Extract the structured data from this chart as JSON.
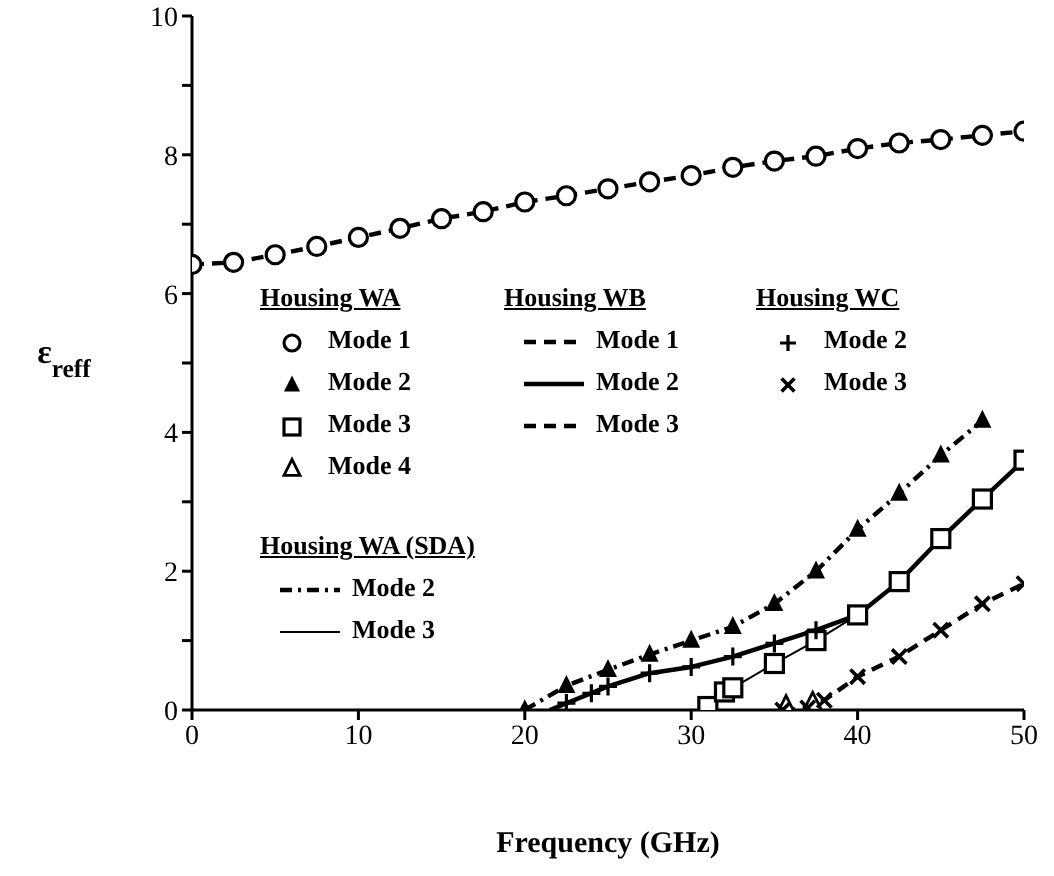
{
  "chart_data": {
    "type": "scatter",
    "xlabel": "Frequency (GHz)",
    "ylabel": "ε$_{reff}$",
    "xlim": [
      0,
      50
    ],
    "ylim": [
      0,
      10
    ],
    "xticks": [
      0,
      10,
      20,
      30,
      40,
      50
    ],
    "yticks": [
      0,
      {
        "value": 1,
        "label": null
      },
      2,
      {
        "value": 3,
        "label": null
      },
      4,
      {
        "value": 5,
        "label": null
      },
      6,
      {
        "value": 7,
        "label": null
      },
      8,
      {
        "value": 9,
        "label": null
      },
      10
    ],
    "grid": false,
    "legend": "left",
    "annotations": [
      "Housing WA",
      "Housing WB",
      "Housing WC",
      "Housing WA (SDA)"
    ],
    "series": [
      {
        "name": "Mode 1",
        "marker": "circle",
        "color": "#000000",
        "x": [
          0,
          2.5,
          5,
          7.5,
          10,
          12.5,
          15,
          17.5,
          20,
          22.5,
          25,
          27.5,
          30,
          32.5,
          35,
          37.5,
          40,
          42.5,
          45,
          47.5,
          50
        ],
        "values": [
          6.42,
          6.45,
          6.56,
          6.68,
          6.81,
          6.94,
          7.08,
          7.18,
          7.32,
          7.41,
          7.51,
          7.61,
          7.7,
          7.82,
          7.91,
          7.98,
          8.09,
          8.17,
          8.22,
          8.28,
          8.34
        ]
      },
      {
        "name": "Mode 2",
        "marker": "triangle",
        "color": "#000000",
        "x": [
          20,
          22.5,
          25,
          27.5,
          30,
          32.5,
          35,
          37.5,
          40,
          42.5,
          45,
          47.5
        ],
        "values": [
          0,
          0.35,
          0.58,
          0.8,
          1.0,
          1.2,
          1.53,
          2.0,
          2.6,
          3.12,
          3.67,
          4.17
        ]
      },
      {
        "name": "Mode 3",
        "marker": "square",
        "color": "#000000",
        "x": [
          31,
          32,
          32.5,
          35,
          37.5,
          40,
          42.5,
          45,
          47.5,
          50
        ],
        "values": [
          0.05,
          0.26,
          0.32,
          0.67,
          1.0,
          1.37,
          1.85,
          2.47,
          3.04,
          3.6
        ]
      },
      {
        "name": "Mode 4",
        "marker": "triangle-open",
        "color": "#000000",
        "x": [
          35.7,
          37.3
        ],
        "values": [
          0.05,
          0.1
        ]
      },
      {
        "name": "Mode 1",
        "type": "line",
        "line_style": "dashed",
        "color": "#000000",
        "x": [
          0,
          2.5,
          5,
          7.5,
          10,
          12.5,
          15,
          17.5,
          20,
          22.5,
          25,
          27.5,
          30,
          32.5,
          35,
          37.5,
          40,
          42.5,
          45,
          47.5,
          50
        ],
        "values": [
          6.42,
          6.45,
          6.56,
          6.68,
          6.81,
          6.94,
          7.08,
          7.18,
          7.32,
          7.41,
          7.51,
          7.61,
          7.7,
          7.82,
          7.91,
          7.98,
          8.09,
          8.17,
          8.22,
          8.28,
          8.34
        ]
      },
      {
        "name": "Mode 2",
        "type": "line",
        "line_style": "solid",
        "color": "#000000",
        "x": [
          21.5,
          25,
          27.5,
          30,
          32.5,
          35,
          37.5,
          40,
          42.5,
          45,
          47.5,
          50
        ],
        "values": [
          0,
          0.34,
          0.53,
          0.62,
          0.77,
          0.96,
          1.15,
          1.37,
          1.85,
          2.47,
          3.04,
          3.6
        ]
      },
      {
        "name": "Mode 3",
        "type": "line",
        "line_style": "dashed",
        "color": "#000000",
        "x": [
          35.5,
          37,
          38,
          40,
          42.5,
          45,
          47.5,
          50
        ],
        "values": [
          0,
          0.03,
          0.14,
          0.48,
          0.77,
          1.15,
          1.53,
          1.82
        ]
      },
      {
        "name": "Mode 2",
        "marker": "cross",
        "color": "#000000",
        "x": [
          22.5,
          24,
          25,
          27.5,
          30,
          32.5,
          35,
          37.5
        ],
        "values": [
          0.1,
          0.24,
          0.34,
          0.53,
          0.62,
          0.77,
          0.96,
          1.15
        ]
      },
      {
        "name": "Mode 3",
        "marker": "x",
        "color": "#000000",
        "x": [
          35.5,
          37,
          38,
          40,
          42.5,
          45,
          47.5,
          50
        ],
        "values": [
          0,
          0.03,
          0.14,
          0.48,
          0.77,
          1.15,
          1.53,
          1.82
        ]
      },
      {
        "name": "Mode 2",
        "type": "line",
        "line_style": "dotted",
        "color": "#000000",
        "x": [
          20,
          22.5,
          25,
          27.5,
          30,
          32.5,
          35,
          37.5,
          40,
          42.5,
          45,
          47.5
        ],
        "values": [
          0,
          0.35,
          0.58,
          0.8,
          1.0,
          1.2,
          1.53,
          2.0,
          2.6,
          3.12,
          3.67,
          4.17
        ]
      },
      {
        "name": "Mode 3",
        "type": "line",
        "line_style": "solid",
        "color": "#000000",
        "x": [
          31,
          32,
          32.5,
          35,
          37.5,
          40
        ],
        "values": [
          0.05,
          0.26,
          0.32,
          0.67,
          1.0,
          1.37
        ]
      }
    ]
  }
}
